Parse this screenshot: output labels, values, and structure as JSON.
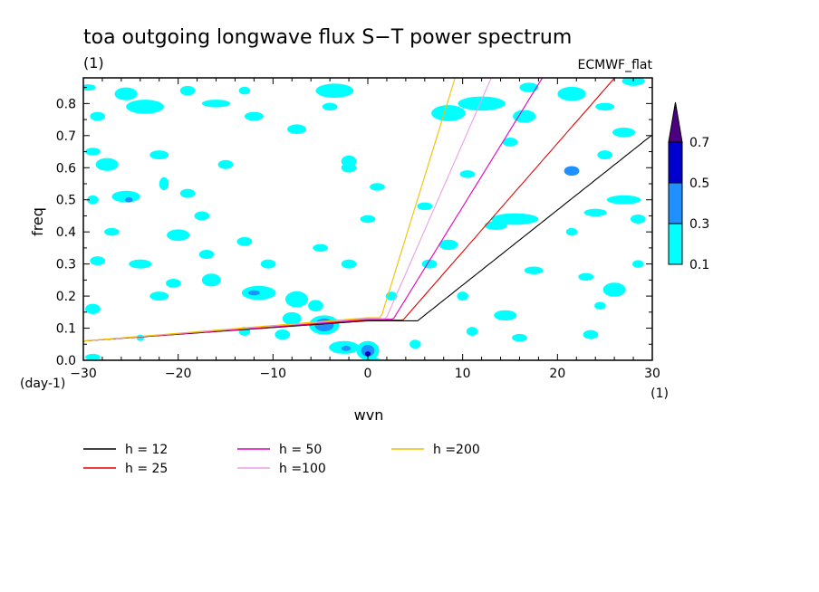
{
  "chart_data": {
    "type": "contour",
    "title": "toa outgoing longwave flux S−T power spectrum",
    "subtitle": "(1)",
    "source_label": "ECMWF_flat",
    "xlabel": "wvn",
    "ylabel": "freq",
    "x_unit": "(1)",
    "y_unit": "(day-1)",
    "xlim": [
      -30,
      30
    ],
    "ylim": [
      0,
      0.88
    ],
    "xticks": [
      "-30",
      "-20",
      "-10",
      "0",
      "10",
      "20",
      "30"
    ],
    "yticks": [
      "0.0",
      "0.1",
      "0.2",
      "0.3",
      "0.4",
      "0.5",
      "0.6",
      "0.7",
      "0.8"
    ],
    "colorbar": {
      "levels": [
        "0.1",
        "0.3",
        "0.5",
        "0.7"
      ],
      "colors": [
        "#00ffff",
        "#1e90ff",
        "#0000cd",
        "#4b0082"
      ]
    },
    "dispersion_curves": [
      {
        "name": "h = 12",
        "h": 12,
        "color": "#000000"
      },
      {
        "name": "h = 25",
        "h": 25,
        "color": "#e00000"
      },
      {
        "name": "h = 50",
        "h": 50,
        "color": "#e000c0"
      },
      {
        "name": "h =100",
        "h": 100,
        "color": "#e8a0e8"
      },
      {
        "name": "h =200",
        "h": 200,
        "color": "#f0c000"
      }
    ],
    "blobs": [
      {
        "x": -29.5,
        "y": 0.85,
        "rx": 0.8,
        "ry": 0.01,
        "level": 0
      },
      {
        "x": -28.5,
        "y": 0.76,
        "rx": 0.8,
        "ry": 0.014,
        "level": 0
      },
      {
        "x": -25.5,
        "y": 0.83,
        "rx": 1.2,
        "ry": 0.02,
        "level": 0
      },
      {
        "x": -23.5,
        "y": 0.79,
        "rx": 2.0,
        "ry": 0.022,
        "level": 0
      },
      {
        "x": -19.0,
        "y": 0.84,
        "rx": 0.8,
        "ry": 0.015,
        "level": 0
      },
      {
        "x": -16.0,
        "y": 0.8,
        "rx": 1.5,
        "ry": 0.012,
        "level": 0
      },
      {
        "x": -13.0,
        "y": 0.84,
        "rx": 0.6,
        "ry": 0.012,
        "level": 0
      },
      {
        "x": -12.0,
        "y": 0.76,
        "rx": 1.0,
        "ry": 0.014,
        "level": 0
      },
      {
        "x": -7.5,
        "y": 0.72,
        "rx": 1.0,
        "ry": 0.015,
        "level": 0
      },
      {
        "x": -3.5,
        "y": 0.84,
        "rx": 2.0,
        "ry": 0.022,
        "level": 0
      },
      {
        "x": -2.0,
        "y": 0.6,
        "rx": 0.8,
        "ry": 0.015,
        "level": 0
      },
      {
        "x": -4.0,
        "y": 0.79,
        "rx": 0.8,
        "ry": 0.012,
        "level": 0
      },
      {
        "x": 8.5,
        "y": 0.77,
        "rx": 1.8,
        "ry": 0.025,
        "level": 0
      },
      {
        "x": 12.0,
        "y": 0.8,
        "rx": 2.5,
        "ry": 0.022,
        "level": 0
      },
      {
        "x": 16.5,
        "y": 0.76,
        "rx": 1.2,
        "ry": 0.02,
        "level": 0
      },
      {
        "x": 17.0,
        "y": 0.85,
        "rx": 1.0,
        "ry": 0.015,
        "level": 0
      },
      {
        "x": 21.5,
        "y": 0.83,
        "rx": 1.5,
        "ry": 0.022,
        "level": 0
      },
      {
        "x": 25.0,
        "y": 0.79,
        "rx": 1.0,
        "ry": 0.012,
        "level": 0
      },
      {
        "x": 28.0,
        "y": 0.87,
        "rx": 1.2,
        "ry": 0.015,
        "level": 0
      },
      {
        "x": 27.0,
        "y": 0.71,
        "rx": 1.2,
        "ry": 0.015,
        "level": 0
      },
      {
        "x": -29.0,
        "y": 0.65,
        "rx": 0.8,
        "ry": 0.012,
        "level": 0
      },
      {
        "x": -27.5,
        "y": 0.61,
        "rx": 1.2,
        "ry": 0.02,
        "level": 0
      },
      {
        "x": -22.0,
        "y": 0.64,
        "rx": 1.0,
        "ry": 0.014,
        "level": 0
      },
      {
        "x": -21.5,
        "y": 0.55,
        "rx": 0.5,
        "ry": 0.02,
        "level": 0
      },
      {
        "x": -15.0,
        "y": 0.61,
        "rx": 0.8,
        "ry": 0.014,
        "level": 0
      },
      {
        "x": -2.0,
        "y": 0.62,
        "rx": 0.8,
        "ry": 0.018,
        "level": 0
      },
      {
        "x": 1.0,
        "y": 0.54,
        "rx": 0.8,
        "ry": 0.012,
        "level": 0
      },
      {
        "x": 10.5,
        "y": 0.58,
        "rx": 0.8,
        "ry": 0.012,
        "level": 0
      },
      {
        "x": 15.0,
        "y": 0.68,
        "rx": 0.8,
        "ry": 0.014,
        "level": 0
      },
      {
        "x": 21.5,
        "y": 0.59,
        "rx": 0.8,
        "ry": 0.015,
        "level": 1
      },
      {
        "x": 25.0,
        "y": 0.64,
        "rx": 0.8,
        "ry": 0.014,
        "level": 0
      },
      {
        "x": 27.0,
        "y": 0.5,
        "rx": 1.8,
        "ry": 0.014,
        "level": 0
      },
      {
        "x": 24.0,
        "y": 0.46,
        "rx": 1.2,
        "ry": 0.012,
        "level": 0
      },
      {
        "x": 28.5,
        "y": 0.44,
        "rx": 0.8,
        "ry": 0.014,
        "level": 0
      },
      {
        "x": -29.0,
        "y": 0.5,
        "rx": 0.6,
        "ry": 0.014,
        "level": 0
      },
      {
        "x": -25.5,
        "y": 0.51,
        "rx": 1.5,
        "ry": 0.018,
        "level": 0
      },
      {
        "x": -25.2,
        "y": 0.5,
        "rx": 0.4,
        "ry": 0.008,
        "level": 1
      },
      {
        "x": -19.0,
        "y": 0.52,
        "rx": 0.8,
        "ry": 0.014,
        "level": 0
      },
      {
        "x": -17.5,
        "y": 0.45,
        "rx": 0.8,
        "ry": 0.014,
        "level": 0
      },
      {
        "x": -27.0,
        "y": 0.4,
        "rx": 0.8,
        "ry": 0.012,
        "level": 0
      },
      {
        "x": -20.0,
        "y": 0.39,
        "rx": 1.2,
        "ry": 0.018,
        "level": 0
      },
      {
        "x": -24.0,
        "y": 0.3,
        "rx": 1.2,
        "ry": 0.014,
        "level": 0
      },
      {
        "x": -28.5,
        "y": 0.31,
        "rx": 0.8,
        "ry": 0.014,
        "level": 0
      },
      {
        "x": -16.5,
        "y": 0.25,
        "rx": 1.0,
        "ry": 0.02,
        "level": 0
      },
      {
        "x": -20.5,
        "y": 0.24,
        "rx": 0.8,
        "ry": 0.014,
        "level": 0
      },
      {
        "x": -22.0,
        "y": 0.2,
        "rx": 1.0,
        "ry": 0.014,
        "level": 0
      },
      {
        "x": -17.0,
        "y": 0.33,
        "rx": 0.8,
        "ry": 0.014,
        "level": 0
      },
      {
        "x": -29.0,
        "y": 0.16,
        "rx": 0.8,
        "ry": 0.016,
        "level": 0
      },
      {
        "x": -13.0,
        "y": 0.37,
        "rx": 0.8,
        "ry": 0.014,
        "level": 0
      },
      {
        "x": -10.5,
        "y": 0.3,
        "rx": 0.8,
        "ry": 0.014,
        "level": 0
      },
      {
        "x": 0.0,
        "y": 0.44,
        "rx": 0.8,
        "ry": 0.012,
        "level": 0
      },
      {
        "x": -5.0,
        "y": 0.35,
        "rx": 0.8,
        "ry": 0.012,
        "level": 0
      },
      {
        "x": -2.0,
        "y": 0.3,
        "rx": 0.8,
        "ry": 0.014,
        "level": 0
      },
      {
        "x": 8.5,
        "y": 0.36,
        "rx": 1.0,
        "ry": 0.016,
        "level": 0
      },
      {
        "x": 6.5,
        "y": 0.3,
        "rx": 0.8,
        "ry": 0.014,
        "level": 0
      },
      {
        "x": 15.5,
        "y": 0.44,
        "rx": 2.5,
        "ry": 0.018,
        "level": 0
      },
      {
        "x": 13.5,
        "y": 0.42,
        "rx": 1.2,
        "ry": 0.014,
        "level": 0
      },
      {
        "x": 17.5,
        "y": 0.28,
        "rx": 1.0,
        "ry": 0.012,
        "level": 0
      },
      {
        "x": 23.0,
        "y": 0.26,
        "rx": 0.8,
        "ry": 0.012,
        "level": 0
      },
      {
        "x": 26.0,
        "y": 0.22,
        "rx": 1.2,
        "ry": 0.022,
        "level": 0
      },
      {
        "x": 21.5,
        "y": 0.4,
        "rx": 0.6,
        "ry": 0.012,
        "level": 0
      },
      {
        "x": 28.5,
        "y": 0.3,
        "rx": 0.6,
        "ry": 0.012,
        "level": 0
      },
      {
        "x": 2.5,
        "y": 0.2,
        "rx": 0.6,
        "ry": 0.014,
        "level": 0
      },
      {
        "x": 10.0,
        "y": 0.2,
        "rx": 0.6,
        "ry": 0.014,
        "level": 0
      },
      {
        "x": 14.5,
        "y": 0.14,
        "rx": 1.2,
        "ry": 0.016,
        "level": 0
      },
      {
        "x": 16.0,
        "y": 0.07,
        "rx": 0.8,
        "ry": 0.012,
        "level": 0
      },
      {
        "x": 11.0,
        "y": 0.09,
        "rx": 0.6,
        "ry": 0.014,
        "level": 0
      },
      {
        "x": 5.0,
        "y": 0.05,
        "rx": 0.6,
        "ry": 0.014,
        "level": 0
      },
      {
        "x": 23.5,
        "y": 0.08,
        "rx": 0.8,
        "ry": 0.014,
        "level": 0
      },
      {
        "x": 24.5,
        "y": 0.17,
        "rx": 0.6,
        "ry": 0.012,
        "level": 0
      },
      {
        "x": -29.0,
        "y": 0.01,
        "rx": 0.8,
        "ry": 0.01,
        "level": 0
      },
      {
        "x": -11.5,
        "y": 0.21,
        "rx": 1.8,
        "ry": 0.022,
        "level": 0
      },
      {
        "x": -12.0,
        "y": 0.21,
        "rx": 0.6,
        "ry": 0.008,
        "level": 1
      },
      {
        "x": -7.5,
        "y": 0.19,
        "rx": 1.2,
        "ry": 0.025,
        "level": 0
      },
      {
        "x": -8.0,
        "y": 0.13,
        "rx": 1.0,
        "ry": 0.02,
        "level": 0
      },
      {
        "x": -9.0,
        "y": 0.08,
        "rx": 0.8,
        "ry": 0.016,
        "level": 0
      },
      {
        "x": -5.5,
        "y": 0.17,
        "rx": 0.8,
        "ry": 0.018,
        "level": 0
      },
      {
        "x": -4.6,
        "y": 0.11,
        "rx": 1.6,
        "ry": 0.03,
        "level": 0
      },
      {
        "x": -4.6,
        "y": 0.11,
        "rx": 1.0,
        "ry": 0.02,
        "level": 1
      },
      {
        "x": -13.0,
        "y": 0.09,
        "rx": 0.6,
        "ry": 0.014,
        "level": 0
      },
      {
        "x": -2.5,
        "y": 0.04,
        "rx": 1.6,
        "ry": 0.02,
        "level": 0
      },
      {
        "x": -2.3,
        "y": 0.037,
        "rx": 0.5,
        "ry": 0.008,
        "level": 1
      },
      {
        "x": 0.0,
        "y": 0.03,
        "rx": 1.2,
        "ry": 0.03,
        "level": 0
      },
      {
        "x": 0.0,
        "y": 0.03,
        "rx": 0.7,
        "ry": 0.018,
        "level": 1
      },
      {
        "x": 0.0,
        "y": 0.02,
        "rx": 0.3,
        "ry": 0.008,
        "level": 2
      },
      {
        "x": 0.5,
        "y": 0.0,
        "rx": 0.8,
        "ry": 0.01,
        "level": 0
      },
      {
        "x": -24.0,
        "y": 0.07,
        "rx": 0.4,
        "ry": 0.01,
        "level": 0
      },
      {
        "x": 6.0,
        "y": 0.48,
        "rx": 0.8,
        "ry": 0.012,
        "level": 0
      }
    ]
  }
}
